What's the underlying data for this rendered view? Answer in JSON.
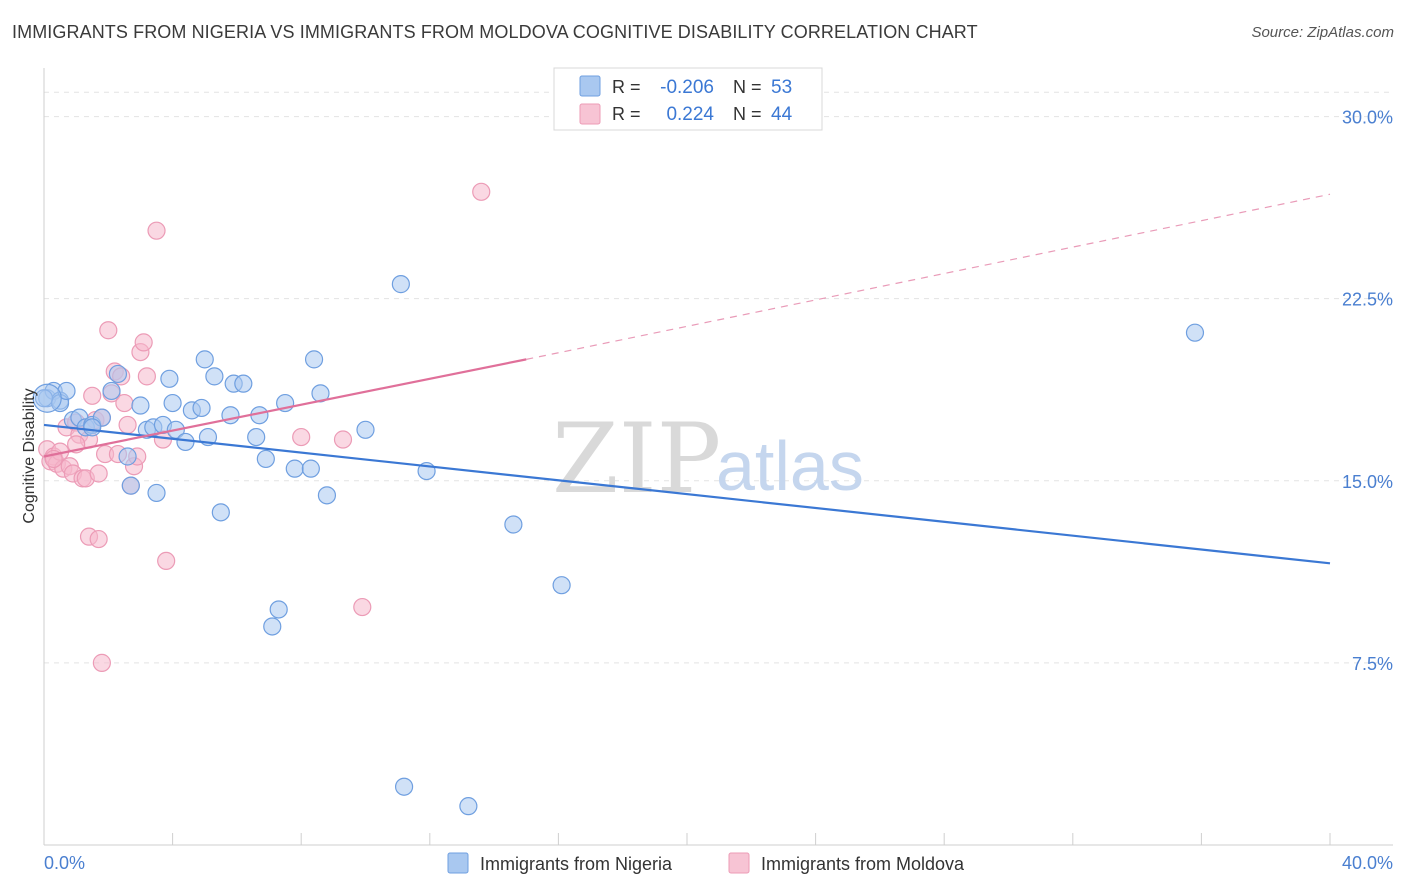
{
  "title": "IMMIGRANTS FROM NIGERIA VS IMMIGRANTS FROM MOLDOVA COGNITIVE DISABILITY CORRELATION CHART",
  "source": "Source: ZipAtlas.com",
  "watermark": {
    "part1": "ZIP",
    "part2": "atlas"
  },
  "colors": {
    "blue": "#3b78d4",
    "blue_fill": "#a9c8f0",
    "pink": "#e0709a",
    "pink_fill": "#f5b8cc",
    "axis_text": "#4a7fd0",
    "grid": "#e3e3e3"
  },
  "legend": {
    "r_label": "R =",
    "n_label": "N =",
    "series1": {
      "r": "-0.206",
      "n": "53"
    },
    "series2": {
      "r": "0.224",
      "n": "44"
    }
  },
  "chart_data": {
    "type": "scatter",
    "title": "IMMIGRANTS FROM NIGERIA VS IMMIGRANTS FROM MOLDOVA COGNITIVE DISABILITY CORRELATION CHART",
    "xlabel": "",
    "ylabel": "Cognitive Disability",
    "xlim": [
      0,
      40
    ],
    "ylim": [
      0,
      32
    ],
    "x_tick_labels": [
      "0.0%",
      "40.0%"
    ],
    "y_ticks": [
      7.5,
      15.0,
      22.5,
      30.0
    ],
    "y_tick_labels": [
      "7.5%",
      "15.0%",
      "22.5%",
      "30.0%"
    ],
    "grid": true,
    "legend_position": "bottom",
    "series": [
      {
        "name": "Immigrants from Nigeria",
        "color": "blue",
        "trend": {
          "x": [
            0,
            40
          ],
          "y": [
            17.3,
            11.6
          ],
          "dashed_from": null
        },
        "points": [
          [
            0.1,
            18.4
          ],
          [
            0.3,
            18.7
          ],
          [
            0.5,
            18.3
          ],
          [
            0.5,
            18.2
          ],
          [
            0.7,
            18.7
          ],
          [
            0.9,
            17.5
          ],
          [
            1.1,
            17.6
          ],
          [
            1.3,
            17.2
          ],
          [
            1.5,
            17.3
          ],
          [
            1.8,
            17.6
          ],
          [
            2.1,
            18.7
          ],
          [
            2.3,
            19.4
          ],
          [
            2.6,
            16.0
          ],
          [
            2.7,
            14.8
          ],
          [
            3.0,
            18.1
          ],
          [
            3.2,
            17.1
          ],
          [
            3.4,
            17.2
          ],
          [
            3.5,
            14.5
          ],
          [
            3.7,
            17.3
          ],
          [
            3.9,
            19.2
          ],
          [
            4.0,
            18.2
          ],
          [
            4.1,
            17.1
          ],
          [
            4.4,
            16.6
          ],
          [
            4.6,
            17.9
          ],
          [
            4.9,
            18.0
          ],
          [
            5.0,
            20.0
          ],
          [
            5.1,
            16.8
          ],
          [
            5.3,
            19.3
          ],
          [
            5.5,
            13.7
          ],
          [
            5.8,
            17.7
          ],
          [
            5.9,
            19.0
          ],
          [
            6.2,
            19.0
          ],
          [
            6.6,
            16.8
          ],
          [
            6.7,
            17.7
          ],
          [
            6.9,
            15.9
          ],
          [
            7.5,
            18.2
          ],
          [
            7.3,
            9.7
          ],
          [
            7.1,
            9.0
          ],
          [
            7.8,
            15.5
          ],
          [
            8.3,
            15.5
          ],
          [
            8.4,
            20.0
          ],
          [
            8.6,
            18.6
          ],
          [
            8.8,
            14.4
          ],
          [
            10.0,
            17.1
          ],
          [
            11.1,
            23.1
          ],
          [
            11.2,
            2.4
          ],
          [
            11.9,
            15.4
          ],
          [
            13.2,
            1.6
          ],
          [
            14.6,
            13.2
          ],
          [
            16.1,
            10.7
          ],
          [
            35.8,
            21.1
          ],
          [
            0.0,
            18.4
          ],
          [
            1.5,
            17.2
          ]
        ]
      },
      {
        "name": "Immigrants from Moldova",
        "color": "pink",
        "trend": {
          "x": [
            0,
            15
          ],
          "y": [
            16.0,
            20.0
          ],
          "dashed_from": 15,
          "dashed_to": [
            40,
            26.8
          ]
        },
        "points": [
          [
            0.1,
            16.3
          ],
          [
            0.2,
            15.8
          ],
          [
            0.3,
            16.0
          ],
          [
            0.4,
            15.7
          ],
          [
            0.5,
            16.2
          ],
          [
            0.6,
            15.5
          ],
          [
            0.7,
            17.2
          ],
          [
            0.8,
            15.6
          ],
          [
            0.9,
            15.3
          ],
          [
            1.0,
            17.4
          ],
          [
            1.1,
            16.9
          ],
          [
            1.2,
            15.1
          ],
          [
            1.3,
            15.1
          ],
          [
            1.4,
            16.7
          ],
          [
            1.5,
            18.5
          ],
          [
            1.6,
            17.5
          ],
          [
            1.7,
            15.3
          ],
          [
            1.8,
            17.6
          ],
          [
            1.4,
            12.7
          ],
          [
            1.7,
            12.6
          ],
          [
            1.8,
            7.5
          ],
          [
            1.9,
            16.1
          ],
          [
            2.0,
            21.2
          ],
          [
            2.1,
            18.6
          ],
          [
            2.2,
            19.5
          ],
          [
            2.3,
            16.1
          ],
          [
            2.4,
            19.3
          ],
          [
            2.5,
            18.2
          ],
          [
            2.6,
            17.3
          ],
          [
            2.7,
            14.8
          ],
          [
            2.8,
            15.6
          ],
          [
            2.9,
            16.0
          ],
          [
            3.0,
            20.3
          ],
          [
            3.1,
            20.7
          ],
          [
            3.2,
            19.3
          ],
          [
            3.5,
            25.3
          ],
          [
            3.7,
            16.7
          ],
          [
            3.8,
            11.7
          ],
          [
            8.0,
            16.8
          ],
          [
            9.3,
            16.7
          ],
          [
            9.9,
            9.8
          ],
          [
            13.6,
            26.9
          ],
          [
            0.3,
            15.9
          ],
          [
            1.0,
            16.5
          ]
        ]
      }
    ]
  }
}
